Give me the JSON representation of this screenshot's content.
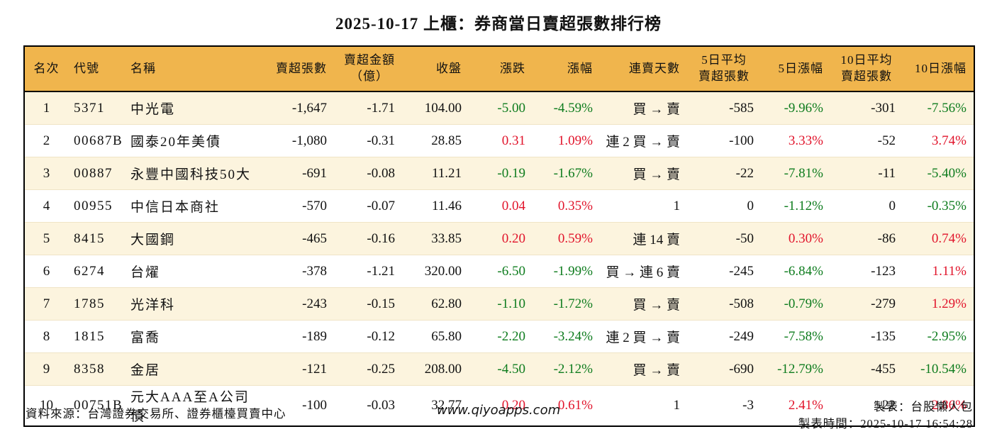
{
  "title": "2025-10-17 上櫃：券商當日賣超張數排行榜",
  "chart_data": {
    "type": "table",
    "title": "2025-10-17 上櫃：券商當日賣超張數排行榜",
    "columns": [
      "名次",
      "代號",
      "名稱",
      "賣超張數",
      "賣超金額\n（億）",
      "收盤",
      "漲跌",
      "漲幅",
      "連賣天數",
      "5日平均\n賣超張數",
      "5日漲幅",
      "10日平均\n賣超張數",
      "10日漲幅"
    ],
    "rows": [
      [
        "1",
        "5371",
        "中光電",
        "-1,647",
        "-1.71",
        "104.00",
        "-5.00",
        "-4.59%",
        "買 → 賣",
        "-585",
        "-9.96%",
        "-301",
        "-7.56%"
      ],
      [
        "2",
        "00687B",
        "國泰20年美債",
        "-1,080",
        "-0.31",
        "28.85",
        "0.31",
        "1.09%",
        "連 2 買 → 賣",
        "-100",
        "3.33%",
        "-52",
        "3.74%"
      ],
      [
        "3",
        "00887",
        "永豐中國科技50大",
        "-691",
        "-0.08",
        "11.21",
        "-0.19",
        "-1.67%",
        "買 → 賣",
        "-22",
        "-7.81%",
        "-11",
        "-5.40%"
      ],
      [
        "4",
        "00955",
        "中信日本商社",
        "-570",
        "-0.07",
        "11.46",
        "0.04",
        "0.35%",
        "1",
        "0",
        "-1.12%",
        "0",
        "-0.35%"
      ],
      [
        "5",
        "8415",
        "大國鋼",
        "-465",
        "-0.16",
        "33.85",
        "0.20",
        "0.59%",
        "連 14 賣",
        "-50",
        "0.30%",
        "-86",
        "0.74%"
      ],
      [
        "6",
        "6274",
        "台燿",
        "-378",
        "-1.21",
        "320.00",
        "-6.50",
        "-1.99%",
        "買 → 連 6 賣",
        "-245",
        "-6.84%",
        "-123",
        "1.11%"
      ],
      [
        "7",
        "1785",
        "光洋科",
        "-243",
        "-0.15",
        "62.80",
        "-1.10",
        "-1.72%",
        "買 → 賣",
        "-508",
        "-0.79%",
        "-279",
        "1.29%"
      ],
      [
        "8",
        "1815",
        "富喬",
        "-189",
        "-0.12",
        "65.80",
        "-2.20",
        "-3.24%",
        "連 2 買 → 賣",
        "-249",
        "-7.58%",
        "-135",
        "-2.95%"
      ],
      [
        "9",
        "8358",
        "金居",
        "-121",
        "-0.25",
        "208.00",
        "-4.50",
        "-2.12%",
        "買 → 賣",
        "-690",
        "-12.79%",
        "-455",
        "-10.54%"
      ],
      [
        "10",
        "00751B",
        "元大AAA至A公司債",
        "-100",
        "-0.03",
        "32.77",
        "0.20",
        "0.61%",
        "1",
        "-3",
        "2.41%",
        "-22",
        "2.86%"
      ]
    ]
  },
  "footer": {
    "source": "資料來源：台灣證券交易所、證券櫃檯買賣中心",
    "website": "www.qiyoapps.com",
    "author": "製表：台股懶人包",
    "generated": "製表時間：2025-10-17 16:54:28"
  },
  "colors": {
    "header_bg": "#F0B54D",
    "row_alt_bg": "#FCF4DE",
    "up_red": "#E1142B",
    "down_green": "#0E7C1E"
  }
}
